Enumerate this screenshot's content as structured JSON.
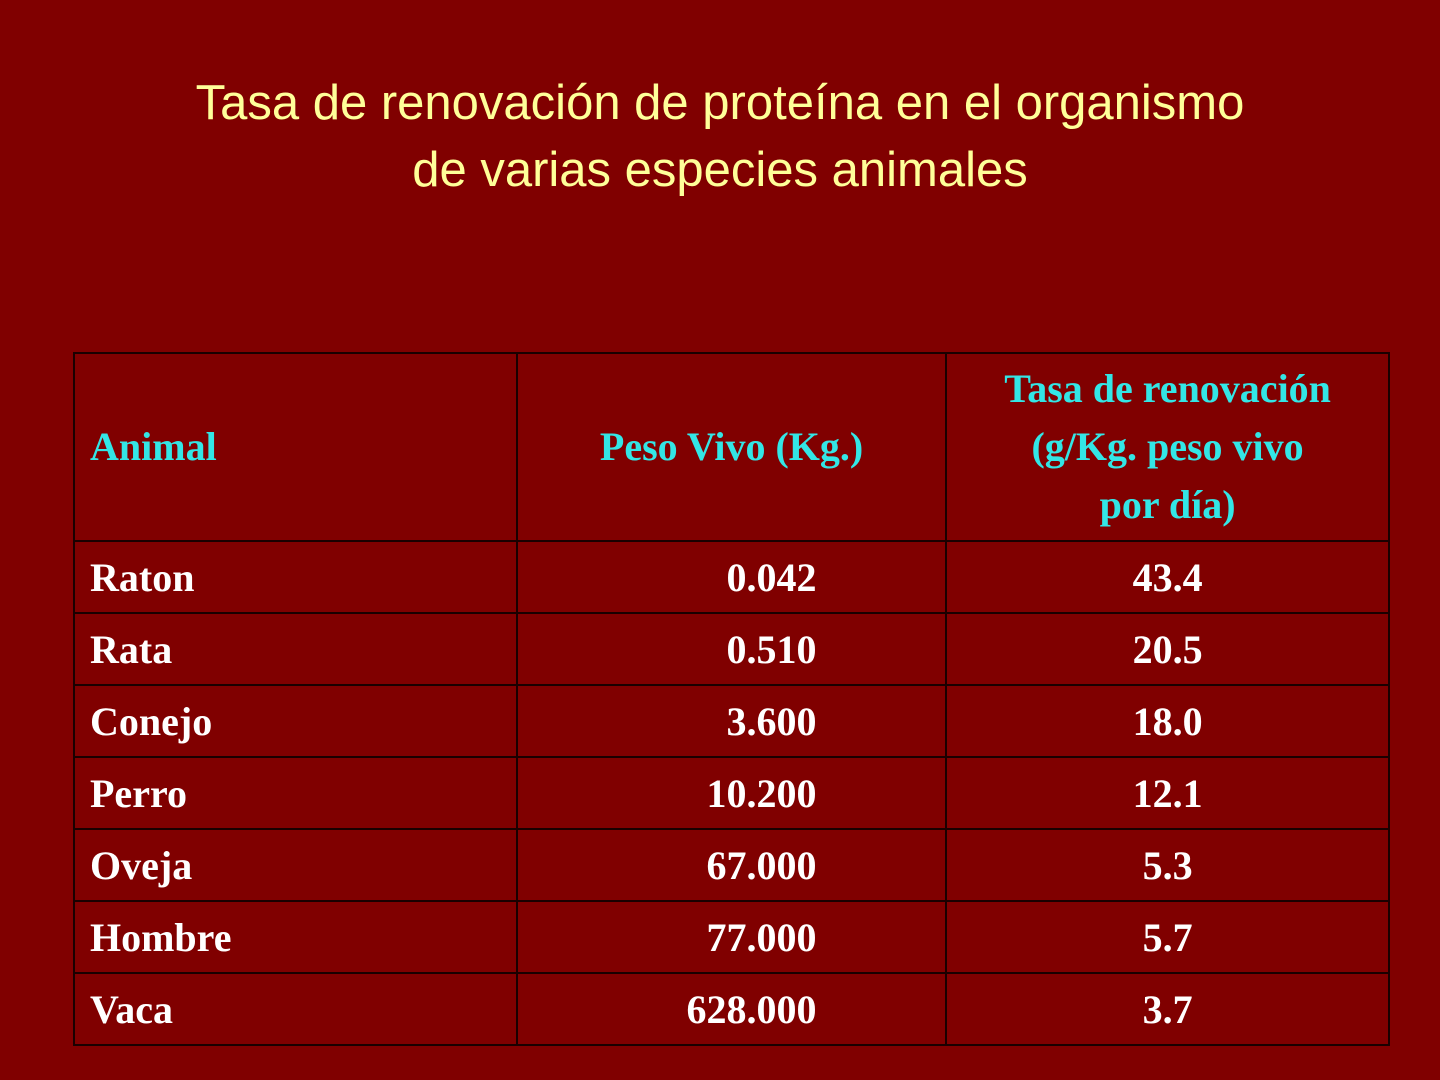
{
  "slide": {
    "title_line1": "Tasa de renovación de proteína en el organismo",
    "title_line2": "de varias especies animales",
    "background_color": "#800000",
    "title_color": "#FFFF99",
    "header_color": "#33E6E6",
    "cell_text_color": "#FFFFFF"
  },
  "table": {
    "headers": {
      "animal": "Animal",
      "peso": "Peso Vivo (Kg.)",
      "tasa_line1": "Tasa de renovación",
      "tasa_line2": "(g/Kg. peso vivo",
      "tasa_line3": "por día)"
    },
    "rows": [
      {
        "animal": "Raton",
        "peso": "0.042",
        "tasa": "43.4"
      },
      {
        "animal": "Rata",
        "peso": "0.510",
        "tasa": "20.5"
      },
      {
        "animal": "Conejo",
        "peso": "3.600",
        "tasa": "18.0"
      },
      {
        "animal": "Perro",
        "peso": "10.200",
        "tasa": "12.1"
      },
      {
        "animal": "Oveja",
        "peso": "67.000",
        "tasa": "5.3"
      },
      {
        "animal": "Hombre",
        "peso": "77.000",
        "tasa": "5.7"
      },
      {
        "animal": "Vaca",
        "peso": "628.000",
        "tasa": "3.7"
      }
    ]
  }
}
